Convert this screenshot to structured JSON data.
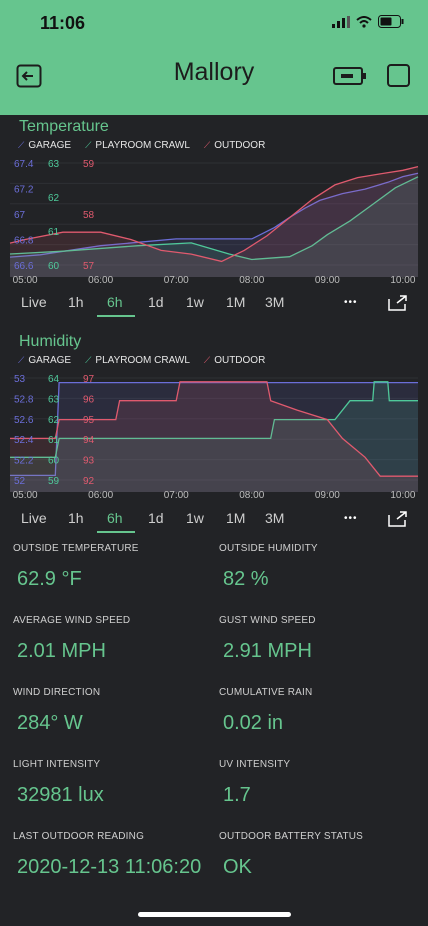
{
  "status_bar": {
    "time": "11:06"
  },
  "header": {
    "title": "Mallory",
    "back_icon": "exit-icon",
    "battery_icon": "battery-icon",
    "square_icon": "square-icon"
  },
  "colors": {
    "accent": "#66c58e",
    "garage": "#6b6ed8",
    "playroom": "#4fc99a",
    "outdoor": "#e05a6e",
    "background": "#222326"
  },
  "legend": {
    "garage": "GARAGE",
    "playroom": "PLAYROOM CRAWL",
    "outdoor": "OUTDOOR"
  },
  "ranges": [
    "Live",
    "1h",
    "6h",
    "1d",
    "1w",
    "1M",
    "3M"
  ],
  "active_range": "6h",
  "x_ticks": [
    "05:00",
    "06:00",
    "07:00",
    "08:00",
    "09:00",
    "10:00"
  ],
  "temperature": {
    "title": "Temperature",
    "garage_ticks": [
      "67.4",
      "67.2",
      "67",
      "66.8",
      "66.6"
    ],
    "playroom_ticks": [
      "63",
      "62",
      "61",
      "60"
    ],
    "outdoor_ticks": [
      "59",
      "58",
      "57"
    ]
  },
  "humidity": {
    "title": "Humidity",
    "garage_ticks": [
      "53",
      "52.8",
      "52.6",
      "52.4",
      "52.2",
      "52"
    ],
    "playroom_ticks": [
      "64",
      "63",
      "62",
      "61",
      "60",
      "59"
    ],
    "outdoor_ticks": [
      "97",
      "96",
      "95",
      "94",
      "93",
      "92"
    ]
  },
  "stats": [
    {
      "label": "OUTSIDE TEMPERATURE",
      "value": "62.9 °F"
    },
    {
      "label": "OUTSIDE HUMIDITY",
      "value": "82 %"
    },
    {
      "label": "AVERAGE WIND SPEED",
      "value": "2.01 MPH"
    },
    {
      "label": "GUST WIND SPEED",
      "value": "2.91 MPH"
    },
    {
      "label": "WIND DIRECTION",
      "value": "284° W"
    },
    {
      "label": "CUMULATIVE RAIN",
      "value": "0.02 in"
    },
    {
      "label": "LIGHT INTENSITY",
      "value": "32981 lux"
    },
    {
      "label": "UV INTENSITY",
      "value": "1.7"
    },
    {
      "label": "LAST OUTDOOR READING",
      "value": "2020-12-13 11:06:20"
    },
    {
      "label": "OUTDOOR BATTERY STATUS",
      "value": "OK"
    }
  ],
  "chart_data": [
    {
      "type": "line",
      "title": "Temperature",
      "x_unit": "hour",
      "x_range": [
        4.8,
        10.2
      ],
      "series": [
        {
          "name": "GARAGE",
          "ylim": [
            66.55,
            67.45
          ],
          "points": [
            [
              4.8,
              66.62
            ],
            [
              5.2,
              66.64
            ],
            [
              6.0,
              66.72
            ],
            [
              7.0,
              66.78
            ],
            [
              8.0,
              66.78
            ],
            [
              8.3,
              66.88
            ],
            [
              8.5,
              66.97
            ],
            [
              8.7,
              67.05
            ],
            [
              8.9,
              67.12
            ],
            [
              9.2,
              67.18
            ],
            [
              9.5,
              67.22
            ],
            [
              9.8,
              67.28
            ],
            [
              10.0,
              67.33
            ],
            [
              10.2,
              67.36
            ]
          ]
        },
        {
          "name": "PLAYROOM CRAWL",
          "ylim": [
            59.9,
            63.6
          ],
          "points": [
            [
              4.8,
              60.3
            ],
            [
              5.5,
              60.4
            ],
            [
              6.5,
              60.6
            ],
            [
              7.2,
              60.7
            ],
            [
              7.7,
              60.3
            ],
            [
              8.0,
              60.1
            ],
            [
              8.5,
              60.2
            ],
            [
              8.8,
              60.6
            ],
            [
              9.0,
              61.0
            ],
            [
              9.3,
              61.5
            ],
            [
              9.6,
              62.1
            ],
            [
              9.9,
              62.7
            ],
            [
              10.2,
              63.1
            ]
          ]
        },
        {
          "name": "OUTDOOR",
          "ylim": [
            56.6,
            59.4
          ],
          "points": [
            [
              4.8,
              57.2
            ],
            [
              5.0,
              57.3
            ],
            [
              5.5,
              57.5
            ],
            [
              6.0,
              57.5
            ],
            [
              6.4,
              57.3
            ],
            [
              6.8,
              57.0
            ],
            [
              7.2,
              56.9
            ],
            [
              7.6,
              56.7
            ],
            [
              7.9,
              57.0
            ],
            [
              8.2,
              57.4
            ],
            [
              8.5,
              57.9
            ],
            [
              8.8,
              58.4
            ],
            [
              9.1,
              58.8
            ],
            [
              9.4,
              59.0
            ],
            [
              9.7,
              59.1
            ],
            [
              10.0,
              59.2
            ],
            [
              10.2,
              59.3
            ]
          ]
        }
      ]
    },
    {
      "type": "line",
      "title": "Humidity",
      "x_unit": "hour",
      "x_range": [
        4.8,
        10.2
      ],
      "series": [
        {
          "name": "GARAGE",
          "ylim": [
            51.95,
            53.05
          ],
          "points": [
            [
              4.8,
              52.0
            ],
            [
              5.4,
              52.0
            ],
            [
              5.45,
              53.0
            ],
            [
              10.2,
              53.0
            ]
          ]
        },
        {
          "name": "PLAYROOM CRAWL",
          "ylim": [
            58.8,
            64.2
          ],
          "points": [
            [
              4.8,
              60.0
            ],
            [
              5.4,
              60.0
            ],
            [
              5.45,
              61.0
            ],
            [
              8.25,
              61.0
            ],
            [
              8.3,
              62.0
            ],
            [
              9.1,
              62.0
            ],
            [
              9.3,
              63.0
            ],
            [
              9.6,
              63.0
            ],
            [
              9.62,
              64.0
            ],
            [
              9.8,
              64.0
            ],
            [
              9.82,
              63.0
            ],
            [
              10.2,
              63.0
            ]
          ]
        },
        {
          "name": "OUTDOOR",
          "ylim": [
            91.8,
            97.2
          ],
          "points": [
            [
              4.8,
              94.0
            ],
            [
              5.4,
              94.0
            ],
            [
              5.45,
              95.0
            ],
            [
              6.2,
              95.0
            ],
            [
              6.25,
              96.0
            ],
            [
              7.0,
              96.0
            ],
            [
              7.05,
              97.0
            ],
            [
              8.2,
              97.0
            ],
            [
              8.25,
              96.0
            ],
            [
              8.6,
              95.5
            ],
            [
              9.0,
              95.0
            ],
            [
              9.2,
              94.0
            ],
            [
              9.5,
              93.0
            ],
            [
              9.7,
              92.0
            ],
            [
              10.2,
              92.0
            ]
          ]
        }
      ]
    }
  ]
}
